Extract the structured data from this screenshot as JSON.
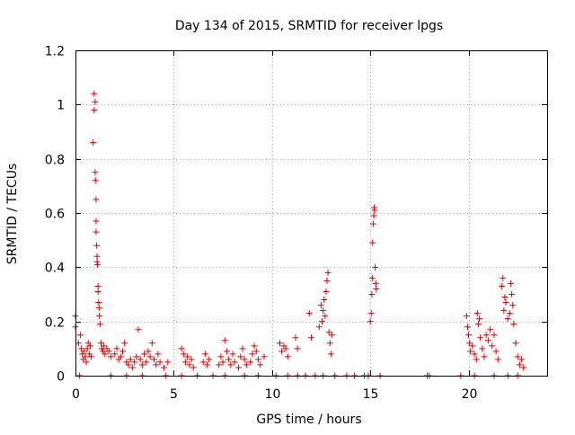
{
  "chart_data": {
    "type": "scatter",
    "title": "Day 134 of 2015, SRMTID for receiver lpgs",
    "xlabel": "GPS time / hours",
    "ylabel": "SRMTID / TECUs",
    "xlim": [
      0,
      24
    ],
    "ylim": [
      0,
      1.2
    ],
    "grid": true,
    "marker": "+",
    "color": "#e00000",
    "x_ticks": [
      0,
      5,
      10,
      15,
      20
    ],
    "x_tick_labels": [
      "0",
      "5",
      "10",
      "15",
      "20"
    ],
    "y_ticks": [
      0,
      0.2,
      0.4,
      0.6,
      0.8,
      1.0,
      1.2
    ],
    "y_tick_labels": [
      "0",
      "0.2",
      "0.4",
      "0.6",
      "0.8",
      "1",
      "1.2"
    ],
    "series": [
      {
        "name": "SRMTID",
        "x": [
          0.0,
          0.0,
          0.15,
          0.25,
          0.3,
          0.35,
          0.4,
          0.45,
          0.5,
          0.55,
          0.6,
          0.65,
          0.7,
          0.75,
          0.8,
          0.9,
          0.95,
          0.95,
          1.0,
          1.0,
          1.02,
          1.05,
          1.05,
          1.05,
          1.08,
          1.1,
          1.1,
          1.12,
          1.15,
          1.15,
          1.18,
          1.2,
          1.22,
          1.25,
          1.3,
          1.35,
          1.4,
          1.45,
          1.5,
          1.6,
          1.7,
          1.8,
          2.0,
          2.1,
          2.2,
          2.3,
          2.4,
          2.5,
          2.6,
          2.7,
          2.8,
          2.9,
          3.0,
          3.1,
          3.2,
          3.3,
          3.4,
          3.5,
          3.6,
          3.7,
          3.8,
          3.9,
          4.0,
          4.1,
          4.2,
          4.3,
          4.5,
          4.7,
          5.4,
          5.5,
          5.6,
          5.7,
          5.8,
          5.9,
          6.0,
          6.5,
          6.6,
          6.7,
          6.8,
          7.3,
          7.4,
          7.5,
          7.6,
          7.7,
          7.8,
          7.9,
          8.0,
          8.1,
          8.3,
          8.4,
          8.5,
          8.6,
          8.7,
          8.9,
          9.0,
          9.1,
          9.2,
          9.3,
          9.4,
          9.6,
          10.4,
          10.5,
          10.6,
          10.7,
          10.8,
          11.2,
          11.3,
          11.9,
          12.0,
          12.4,
          12.5,
          12.55,
          12.6,
          12.65,
          12.7,
          12.75,
          12.8,
          12.85,
          12.9,
          12.95,
          13.0,
          13.05,
          15.0,
          15.05,
          15.08,
          15.1,
          15.12,
          15.15,
          15.18,
          15.2,
          15.22,
          15.25,
          15.28,
          15.3,
          19.9,
          19.95,
          20.0,
          20.05,
          20.1,
          20.2,
          20.3,
          20.4,
          20.45,
          20.5,
          20.55,
          20.6,
          20.7,
          20.8,
          20.9,
          21.0,
          21.1,
          21.2,
          21.3,
          21.4,
          21.5,
          21.7,
          21.75,
          21.8,
          21.85,
          21.9,
          22.0,
          22.1,
          22.15,
          22.2,
          22.25,
          22.3,
          22.4,
          22.5,
          22.6,
          22.7,
          22.8,
          0.2,
          1.8,
          2.6,
          3.4,
          4.6,
          5.4,
          6.2,
          7.0,
          7.6,
          8.6,
          9.3,
          10.2,
          10.8,
          11.3,
          11.7,
          12.2,
          12.6,
          13.2,
          13.8,
          14.2,
          14.7,
          14.9,
          15.5,
          17.9,
          18.0,
          19.6,
          20.3,
          21.3,
          22.0,
          22.5
        ],
        "y": [
          0.22,
          0.18,
          0.12,
          0.15,
          0.1,
          0.08,
          0.06,
          0.09,
          0.07,
          0.05,
          0.1,
          0.12,
          0.08,
          0.11,
          0.07,
          0.86,
          0.98,
          1.04,
          1.01,
          0.75,
          0.72,
          0.65,
          0.57,
          0.53,
          0.48,
          0.44,
          0.42,
          0.41,
          0.33,
          0.31,
          0.27,
          0.25,
          0.22,
          0.19,
          0.12,
          0.1,
          0.09,
          0.11,
          0.08,
          0.1,
          0.09,
          0.07,
          0.08,
          0.1,
          0.06,
          0.07,
          0.09,
          0.12,
          0.05,
          0.04,
          0.06,
          0.03,
          0.05,
          0.07,
          0.17,
          0.06,
          0.04,
          0.08,
          0.05,
          0.09,
          0.07,
          0.12,
          0.06,
          0.04,
          0.08,
          0.05,
          0.03,
          0.05,
          0.1,
          0.08,
          0.05,
          0.07,
          0.04,
          0.06,
          0.03,
          0.05,
          0.08,
          0.04,
          0.06,
          0.04,
          0.07,
          0.05,
          0.13,
          0.09,
          0.06,
          0.04,
          0.08,
          0.05,
          0.03,
          0.07,
          0.1,
          0.06,
          0.04,
          0.05,
          0.08,
          0.11,
          0.09,
          0.06,
          0.04,
          0.07,
          0.12,
          0.09,
          0.11,
          0.1,
          0.07,
          0.14,
          0.1,
          0.23,
          0.14,
          0.18,
          0.26,
          0.2,
          0.24,
          0.28,
          0.22,
          0.31,
          0.35,
          0.38,
          0.16,
          0.12,
          0.08,
          0.15,
          0.2,
          0.23,
          0.3,
          0.36,
          0.49,
          0.56,
          0.59,
          0.62,
          0.61,
          0.4,
          0.34,
          0.32,
          0.22,
          0.18,
          0.15,
          0.12,
          0.09,
          0.11,
          0.08,
          0.06,
          0.23,
          0.19,
          0.21,
          0.14,
          0.1,
          0.07,
          0.15,
          0.13,
          0.17,
          0.11,
          0.15,
          0.09,
          0.06,
          0.33,
          0.36,
          0.24,
          0.29,
          0.27,
          0.21,
          0.23,
          0.34,
          0.3,
          0.26,
          0.19,
          0.12,
          0.07,
          0.04,
          0.06,
          0.03,
          0.0,
          0.0,
          0.0,
          0.0,
          0.0,
          0.0,
          0.0,
          0.0,
          0.0,
          0.0,
          0.0,
          0.0,
          0.0,
          0.0,
          0.0,
          0.0,
          0.0,
          0.0,
          0.0,
          0.0,
          0.0,
          0.0,
          0.0,
          0.0,
          0.0,
          0.0,
          0.0,
          0.0,
          0.0,
          0.0
        ]
      }
    ]
  }
}
